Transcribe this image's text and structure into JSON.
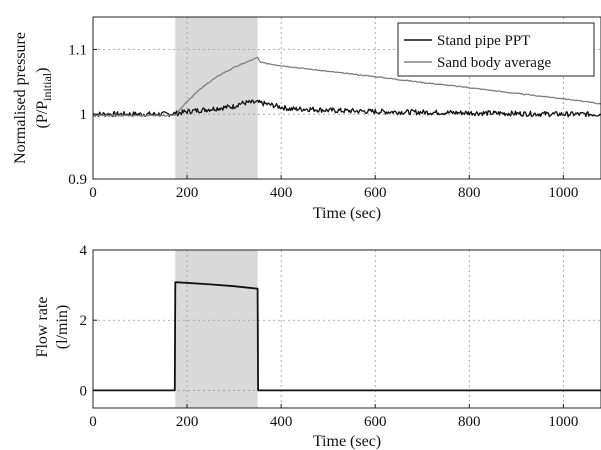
{
  "chart_data": [
    {
      "type": "line",
      "xlabel": "Time (sec)",
      "ylabel_line1": "Normalised pressure",
      "ylabel_line2_main": "(P/P",
      "ylabel_line2_sub": "initial",
      "ylabel_line2_end": ")",
      "xlim": [
        0,
        1080
      ],
      "ylim": [
        0.9,
        1.15
      ],
      "xticks": [
        0,
        200,
        400,
        600,
        800,
        1000
      ],
      "yticks": [
        0.9,
        1,
        1.1
      ],
      "ytick_labels": [
        "0.9",
        "1",
        "1.1"
      ],
      "xtick_labels": [
        "0",
        "200",
        "400",
        "600",
        "800",
        "1000"
      ],
      "grid": true,
      "legend_position": "top-right",
      "shaded_region": [
        175,
        350
      ],
      "series": [
        {
          "name": "Stand pipe PPT",
          "color": "#111111",
          "x": [
            0,
            50,
            100,
            150,
            175,
            200,
            250,
            300,
            310,
            330,
            350,
            380,
            420,
            460,
            500,
            600,
            700,
            800,
            900,
            1000,
            1080
          ],
          "y": [
            1.0,
            1.0,
            1.0,
            1.0,
            1.001,
            1.004,
            1.008,
            1.012,
            1.016,
            1.018,
            1.018,
            1.014,
            1.008,
            1.008,
            1.006,
            1.004,
            1.003,
            1.002,
            1.001,
            1.0,
            1.0
          ]
        },
        {
          "name": "Sand body average",
          "color": "#808080",
          "x": [
            0,
            100,
            175,
            200,
            225,
            250,
            275,
            300,
            325,
            345,
            350,
            355,
            400,
            500,
            600,
            700,
            800,
            900,
            1000,
            1080
          ],
          "y": [
            0.998,
            0.998,
            0.998,
            1.02,
            1.037,
            1.051,
            1.063,
            1.072,
            1.08,
            1.086,
            1.088,
            1.08,
            1.075,
            1.066,
            1.058,
            1.049,
            1.041,
            1.032,
            1.024,
            1.016
          ]
        }
      ]
    },
    {
      "type": "line",
      "xlabel": "Time (sec)",
      "ylabel_line1": "Flow rate",
      "ylabel_line2": "(l/min)",
      "xlim": [
        0,
        1080
      ],
      "ylim": [
        -0.5,
        4
      ],
      "xticks": [
        0,
        200,
        400,
        600,
        800,
        1000
      ],
      "yticks": [
        0,
        2,
        4
      ],
      "xtick_labels": [
        "0",
        "200",
        "400",
        "600",
        "800",
        "1000"
      ],
      "ytick_labels": [
        "0",
        "2",
        "4"
      ],
      "grid": true,
      "shaded_region": [
        175,
        350
      ],
      "series": [
        {
          "color": "#111111",
          "x": [
            0,
            174,
            175,
            180,
            250,
            300,
            348,
            350,
            351,
            1080
          ],
          "y": [
            0,
            0,
            3.08,
            3.08,
            3.02,
            2.97,
            2.9,
            2.9,
            0,
            0
          ]
        }
      ]
    }
  ]
}
